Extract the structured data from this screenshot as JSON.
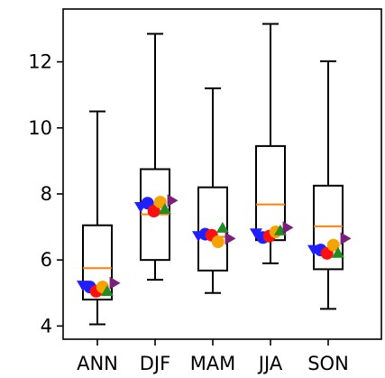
{
  "chart_data": {
    "type": "box",
    "categories": [
      "ANN",
      "DJF",
      "MAM",
      "JJA",
      "SON"
    ],
    "ylim": [
      3.6,
      13.6
    ],
    "yticks": [
      4,
      6,
      8,
      10,
      12
    ],
    "ytick_labels": [
      "4",
      "6",
      "8",
      "10",
      "12"
    ],
    "grid": false,
    "boxes": [
      {
        "category": "ANN",
        "whisker_low": 4.05,
        "q1": 4.8,
        "median": 5.75,
        "q3": 7.05,
        "whisker_high": 10.5
      },
      {
        "category": "DJF",
        "whisker_low": 5.4,
        "q1": 6.0,
        "median": 7.38,
        "q3": 8.75,
        "whisker_high": 12.85
      },
      {
        "category": "MAM",
        "whisker_low": 5.0,
        "q1": 5.68,
        "median": 6.7,
        "q3": 8.2,
        "whisker_high": 11.2
      },
      {
        "category": "JJA",
        "whisker_low": 5.9,
        "q1": 6.6,
        "median": 7.68,
        "q3": 9.45,
        "whisker_high": 13.15
      },
      {
        "category": "SON",
        "whisker_low": 4.52,
        "q1": 5.72,
        "median": 7.02,
        "q3": 8.25,
        "whisker_high": 12.02
      }
    ],
    "median_color": "#ff7f0e",
    "markers": [
      {
        "category": "ANN",
        "points": [
          {
            "marker": "triangle-down",
            "color": "#1f1fff",
            "dx": -0.25,
            "y": 5.22
          },
          {
            "marker": "circle",
            "color": "#1f1fff",
            "dx": -0.13,
            "y": 5.18
          },
          {
            "marker": "circle",
            "color": "#ff1010",
            "dx": -0.02,
            "y": 5.05
          },
          {
            "marker": "circle",
            "color": "#f5a300",
            "dx": 0.09,
            "y": 5.18
          },
          {
            "marker": "triangle-up",
            "color": "#228b22",
            "dx": 0.17,
            "y": 5.06
          },
          {
            "marker": "triangle-right",
            "color": "#7a1f7a",
            "dx": 0.3,
            "y": 5.3
          }
        ]
      },
      {
        "category": "DJF",
        "points": [
          {
            "marker": "triangle-down",
            "color": "#1f1fff",
            "dx": -0.25,
            "y": 7.6
          },
          {
            "marker": "circle",
            "color": "#1f1fff",
            "dx": -0.13,
            "y": 7.72
          },
          {
            "marker": "circle",
            "color": "#ff1010",
            "dx": -0.02,
            "y": 7.48
          },
          {
            "marker": "circle",
            "color": "#f5a300",
            "dx": 0.09,
            "y": 7.75
          },
          {
            "marker": "triangle-up",
            "color": "#228b22",
            "dx": 0.17,
            "y": 7.55
          },
          {
            "marker": "triangle-right",
            "color": "#7a1f7a",
            "dx": 0.3,
            "y": 7.8
          }
        ]
      },
      {
        "category": "MAM",
        "points": [
          {
            "marker": "triangle-down",
            "color": "#1f1fff",
            "dx": -0.25,
            "y": 6.72
          },
          {
            "marker": "circle",
            "color": "#1f1fff",
            "dx": -0.13,
            "y": 6.78
          },
          {
            "marker": "circle",
            "color": "#ff1010",
            "dx": -0.02,
            "y": 6.75
          },
          {
            "marker": "circle",
            "color": "#f5a300",
            "dx": 0.09,
            "y": 6.55
          },
          {
            "marker": "triangle-up",
            "color": "#228b22",
            "dx": 0.17,
            "y": 6.98
          },
          {
            "marker": "triangle-right",
            "color": "#7a1f7a",
            "dx": 0.3,
            "y": 6.65
          }
        ]
      },
      {
        "category": "JJA",
        "points": [
          {
            "marker": "triangle-down",
            "color": "#1f1fff",
            "dx": -0.25,
            "y": 6.8
          },
          {
            "marker": "circle",
            "color": "#1f1fff",
            "dx": -0.13,
            "y": 6.68
          },
          {
            "marker": "circle",
            "color": "#ff1010",
            "dx": -0.02,
            "y": 6.72
          },
          {
            "marker": "circle",
            "color": "#f5a300",
            "dx": 0.09,
            "y": 6.85
          },
          {
            "marker": "triangle-up",
            "color": "#228b22",
            "dx": 0.17,
            "y": 6.9
          },
          {
            "marker": "triangle-right",
            "color": "#7a1f7a",
            "dx": 0.3,
            "y": 6.98
          }
        ]
      },
      {
        "category": "SON",
        "points": [
          {
            "marker": "triangle-down",
            "color": "#1f1fff",
            "dx": -0.25,
            "y": 6.3
          },
          {
            "marker": "circle",
            "color": "#1f1fff",
            "dx": -0.13,
            "y": 6.3
          },
          {
            "marker": "circle",
            "color": "#ff1010",
            "dx": -0.02,
            "y": 6.2
          },
          {
            "marker": "circle",
            "color": "#f5a300",
            "dx": 0.09,
            "y": 6.45
          },
          {
            "marker": "triangle-up",
            "color": "#228b22",
            "dx": 0.17,
            "y": 6.22
          },
          {
            "marker": "triangle-right",
            "color": "#7a1f7a",
            "dx": 0.3,
            "y": 6.65
          }
        ]
      }
    ]
  }
}
